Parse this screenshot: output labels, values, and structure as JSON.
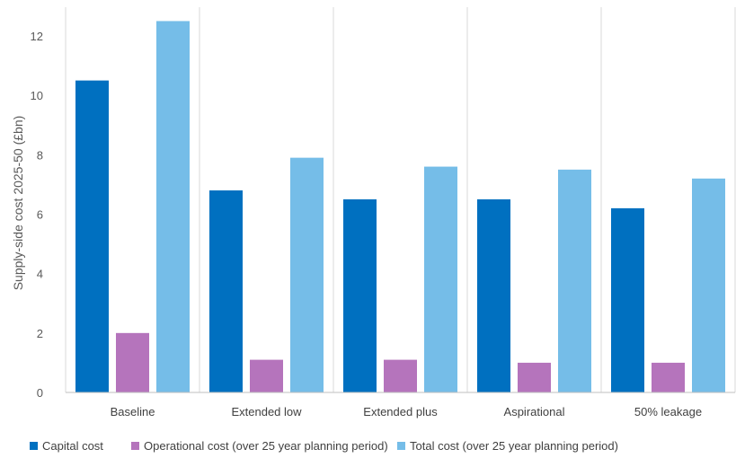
{
  "chart_data": {
    "type": "bar",
    "ylabel": "Supply-side cost 2025-50 (£bn)",
    "categories": [
      "Baseline",
      "Extended low",
      "Extended plus",
      "Aspirational",
      "50% leakage"
    ],
    "series": [
      {
        "name": "Capital cost",
        "color": "#0070C0",
        "values": [
          10.5,
          6.8,
          6.5,
          6.5,
          6.2
        ]
      },
      {
        "name": "Operational cost (over 25 year planning period)",
        "color": "#B574BC",
        "values": [
          2.0,
          1.1,
          1.1,
          1.0,
          1.0
        ]
      },
      {
        "name": "Total cost (over 25 year planning period)",
        "color": "#75BDE8",
        "values": [
          12.5,
          7.9,
          7.6,
          7.5,
          7.2
        ]
      }
    ],
    "ylim": [
      0,
      13
    ],
    "yticks": [
      0,
      2,
      4,
      6,
      8,
      10,
      12
    ],
    "grid": "vertical separators between categories",
    "legend": "bottom"
  }
}
